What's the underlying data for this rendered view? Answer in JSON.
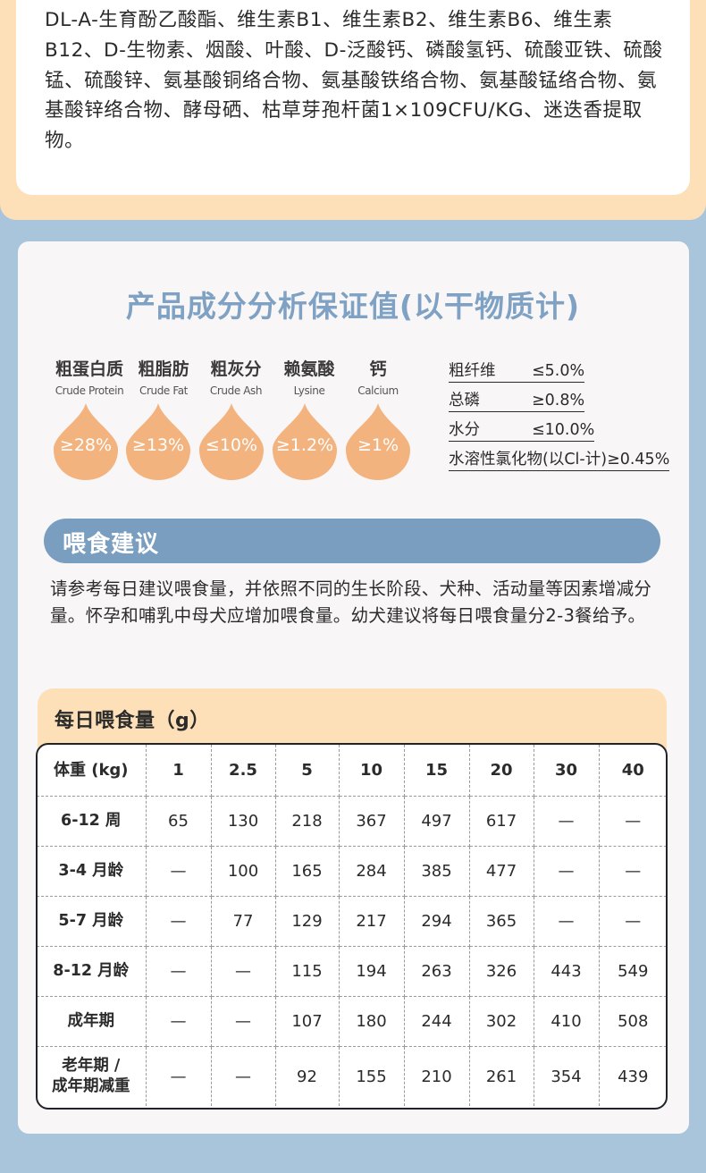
{
  "ingredients_text": "DL-A-生育酚乙酸酯、维生素B1、维生素B2、维生素B6、维生素B12、D-生物素、烟酸、叶酸、D-泛酸钙、磷酸氢钙、硫酸亚铁、硫酸锰、硫酸锌、氨基酸铜络合物、氨基酸铁络合物、氨基酸锰络合物、氨基酸锌络合物、酵母硒、枯草芽孢杆菌1×109CFU/KG、迷迭香提取物。",
  "analysis": {
    "title": "产品成分分析保证值(以干物质计)",
    "nutrients": [
      {
        "cn": "粗蛋白质",
        "en": "Crude Protein",
        "value": "≥28%"
      },
      {
        "cn": "粗脂肪",
        "en": "Crude Fat",
        "value": "≥13%"
      },
      {
        "cn": "粗灰分",
        "en": "Crude Ash",
        "value": "≤10%"
      },
      {
        "cn": "赖氨酸",
        "en": "Lysine",
        "value": "≥1.2%"
      },
      {
        "cn": "钙",
        "en": "Calcium",
        "value": "≥1%"
      }
    ],
    "specs": [
      {
        "name": "粗纤维",
        "value": "≤5.0%"
      },
      {
        "name": "总磷",
        "value": "≥0.8%"
      },
      {
        "name": "水分",
        "value": "≤10.0%"
      },
      {
        "name": "水溶性氯化物(以Cl-计)",
        "value": "≥0.45%"
      }
    ]
  },
  "feeding": {
    "title": "喂食建议",
    "text": "请参考每日建议喂食量，并依照不同的生长阶段、犬种、活动量等因素增减分量。怀孕和哺乳中母犬应增加喂食量。幼犬建议将每日喂食量分2-3餐给予。",
    "table_title": "每日喂食量（g）",
    "header": [
      "体重 (kg)",
      "1",
      "2.5",
      "5",
      "10",
      "15",
      "20",
      "30",
      "40"
    ],
    "rows": [
      [
        "6-12 周",
        "65",
        "130",
        "218",
        "367",
        "497",
        "617",
        "—",
        "—"
      ],
      [
        "3-4 月龄",
        "—",
        "100",
        "165",
        "284",
        "385",
        "477",
        "—",
        "—"
      ],
      [
        "5-7 月龄",
        "—",
        "77",
        "129",
        "217",
        "294",
        "365",
        "—",
        "—"
      ],
      [
        "8-12 月龄",
        "—",
        "—",
        "115",
        "194",
        "263",
        "326",
        "443",
        "549"
      ],
      [
        "成年期",
        "—",
        "—",
        "107",
        "180",
        "244",
        "302",
        "410",
        "508"
      ],
      [
        "老年期 /\n成年期减重",
        "—",
        "—",
        "92",
        "155",
        "210",
        "261",
        "354",
        "439"
      ]
    ]
  },
  "colors": {
    "peach": "#fde0b8",
    "drop_orange": "#f3b37f",
    "title_blue": "#7ea1c4",
    "banner_blue": "#7a9ec0",
    "page_blue": "#a9c5dc"
  }
}
